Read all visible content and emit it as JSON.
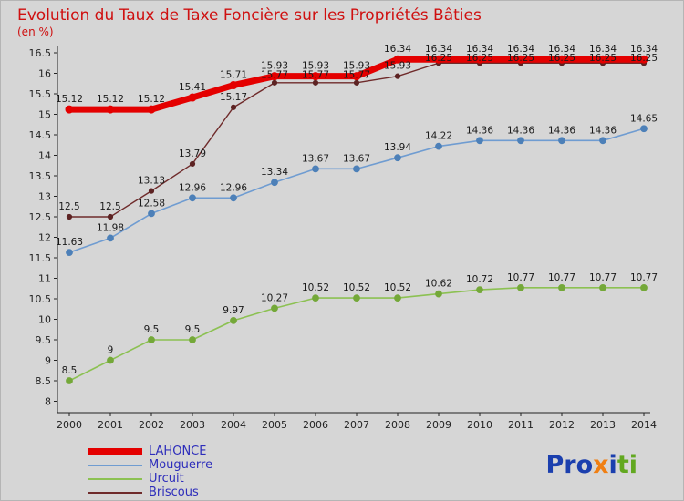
{
  "title": "Evolution du Taux de Taxe Foncière sur les Propriétés Bâties",
  "subtitle": "(en %)",
  "colors": {
    "background": "#d6d6d6",
    "title": "#cf1010",
    "legend_text": "#2d2dbb",
    "axis": "#222222",
    "data_label": "#1a1a1a"
  },
  "chart_data": {
    "type": "line",
    "title": "Evolution du Taux de Taxe Foncière sur les Propriétés Bâties",
    "ylabel": "(en %)",
    "x": [
      2000,
      2001,
      2002,
      2003,
      2004,
      2005,
      2006,
      2007,
      2008,
      2009,
      2010,
      2011,
      2012,
      2013,
      2014
    ],
    "series": [
      {
        "name": "LAHONCE",
        "color": "#e40000",
        "marker_color": "#e40000",
        "line_width": 7,
        "marker_r": 4,
        "values": [
          15.12,
          15.12,
          15.12,
          15.41,
          15.71,
          15.93,
          15.93,
          15.93,
          16.34,
          16.34,
          16.34,
          16.34,
          16.34,
          16.34,
          16.34
        ]
      },
      {
        "name": "Mouguerre",
        "color": "#6f9cd1",
        "marker_color": "#4d80b8",
        "line_width": 1.6,
        "marker_r": 3.4,
        "values": [
          11.63,
          11.98,
          12.58,
          12.96,
          12.96,
          13.34,
          13.67,
          13.67,
          13.94,
          14.22,
          14.36,
          14.36,
          14.36,
          14.36,
          14.65
        ]
      },
      {
        "name": "Urcuit",
        "color": "#8cc152",
        "marker_color": "#74a839",
        "line_width": 1.6,
        "marker_r": 3.4,
        "values": [
          8.5,
          9,
          9.5,
          9.5,
          9.97,
          10.27,
          10.52,
          10.52,
          10.52,
          10.62,
          10.72,
          10.77,
          10.77,
          10.77,
          10.77
        ]
      },
      {
        "name": "Briscous",
        "color": "#6f2b2b",
        "marker_color": "#5d2323",
        "line_width": 1.4,
        "marker_r": 2.6,
        "values": [
          12.5,
          12.5,
          13.13,
          13.79,
          15.17,
          15.77,
          15.77,
          15.77,
          15.93,
          16.25,
          16.25,
          16.25,
          16.25,
          16.25,
          16.25
        ]
      }
    ],
    "ylim": [
      8,
      16.5
    ],
    "ytick_step": 0.5,
    "grid": false,
    "legend_position": "bottom-left",
    "data_labels": true
  },
  "legend": {
    "items": [
      "LAHONCE",
      "Mouguerre",
      "Urcuit",
      "Briscous"
    ]
  },
  "logo": {
    "parts": [
      {
        "text": "Pro",
        "color": "#1b3fae"
      },
      {
        "text": "x",
        "color": "#f07f13"
      },
      {
        "text": "i",
        "color": "#1b3fae"
      },
      {
        "text": "t",
        "color": "#62a820"
      },
      {
        "text": "i",
        "color": "#62a820"
      }
    ]
  }
}
